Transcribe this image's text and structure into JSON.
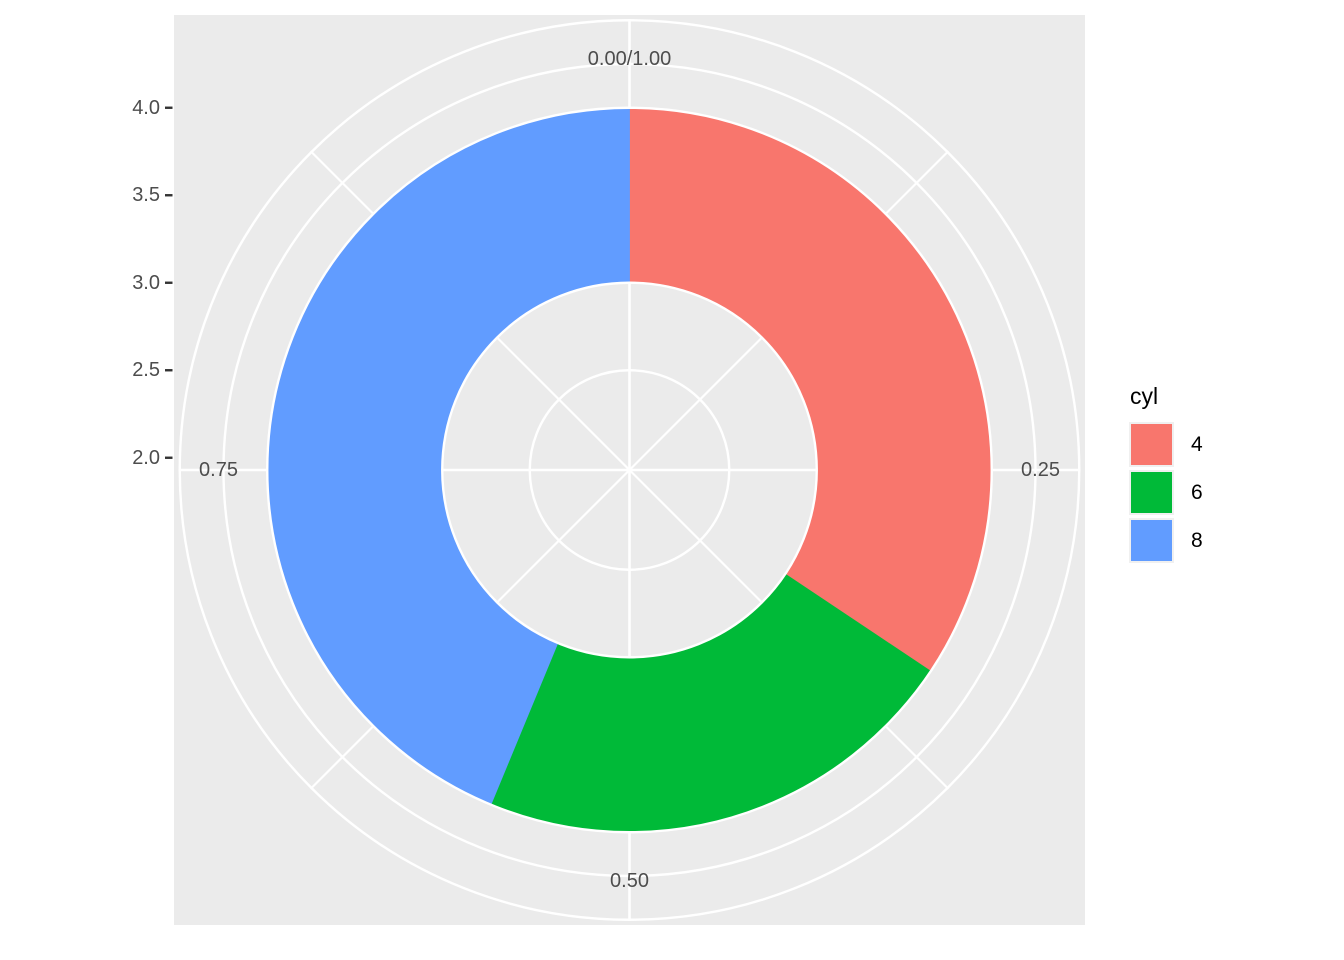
{
  "chart_data": {
    "type": "pie",
    "subtype": "donut",
    "title": "",
    "legend_title": "cyl",
    "legend_position": "right",
    "categories": [
      "4",
      "6",
      "8"
    ],
    "proportions": [
      0.34375,
      0.21875,
      0.4375
    ],
    "colors": [
      "#F8766D",
      "#00BA38",
      "#619CFF"
    ],
    "direction": "clockwise",
    "start_turn": 0,
    "ring_extent": [
      3.0,
      4.0
    ],
    "theta_axis": {
      "labels": [
        "0.00/1.00",
        "0.25",
        "0.50",
        "0.75"
      ],
      "positions": [
        0,
        0.25,
        0.5,
        0.75
      ]
    },
    "r_axis": {
      "labels": [
        "4.0",
        "3.5",
        "3.0",
        "2.5",
        "2.0"
      ],
      "values": [
        4.0,
        3.5,
        3.0,
        2.5,
        2.0
      ]
    },
    "grid": {
      "circle_values_under_ring": [
        2.5,
        3.5
      ],
      "circle_values_on_ring_edges": [
        3.0,
        4.0
      ],
      "circle_values_outside_ring": [
        4.25,
        4.5
      ],
      "spoke_major_turns": [
        0,
        0.25,
        0.5,
        0.75
      ],
      "spoke_minor_turns": [
        0.125,
        0.375,
        0.625,
        0.875
      ]
    },
    "colors_ui": {
      "panel_background": "#EBEBEB",
      "grid_line": "#FFFFFF",
      "axis_text": "#4D4D4D",
      "tick_mark": "#333333",
      "legend_text": "#000000",
      "legend_key_background": "#F0F0F0",
      "page_background": "#FFFFFF"
    }
  }
}
